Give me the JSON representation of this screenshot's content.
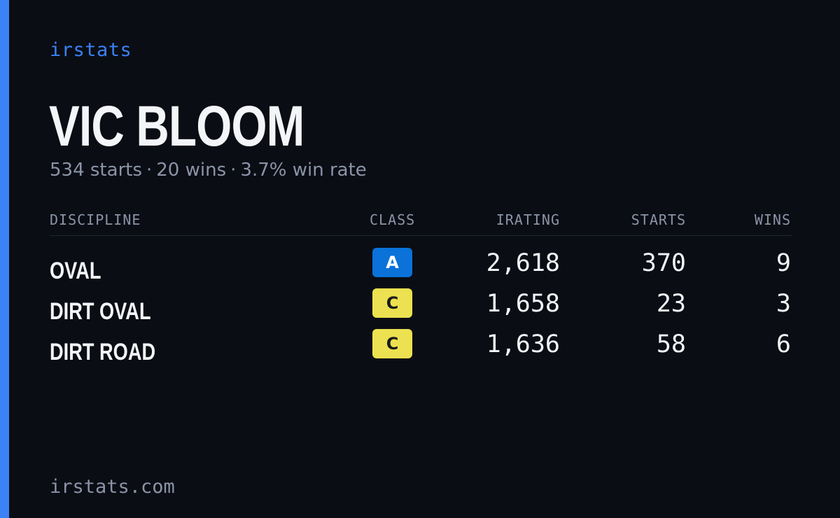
{
  "brand": "irstats",
  "driver": {
    "name": "VIC BLOOM"
  },
  "summary": {
    "starts": "534 starts",
    "wins": "20 wins",
    "win_rate": "3.7% win rate",
    "separator": "·"
  },
  "table": {
    "headers": {
      "discipline": "DISCIPLINE",
      "class": "CLASS",
      "irating": "IRATING",
      "starts": "STARTS",
      "wins": "WINS"
    },
    "rows": [
      {
        "discipline": "OVAL",
        "class": "A",
        "class_bg": "#0a72d9",
        "class_fg": "#ffffff",
        "irating": "2,618",
        "starts": "370",
        "wins": "9"
      },
      {
        "discipline": "DIRT OVAL",
        "class": "C",
        "class_bg": "#ece150",
        "class_fg": "#1a1a1a",
        "irating": "1,658",
        "starts": "23",
        "wins": "3"
      },
      {
        "discipline": "DIRT ROAD",
        "class": "C",
        "class_bg": "#ece150",
        "class_fg": "#1a1a1a",
        "irating": "1,636",
        "starts": "58",
        "wins": "6"
      }
    ]
  },
  "footer": {
    "url": "irstats.com"
  },
  "colors": {
    "accent": "#3b82f6",
    "background": "#0a0d14",
    "muted_text": "#8b93a7",
    "primary_text": "#f4f5f8"
  }
}
